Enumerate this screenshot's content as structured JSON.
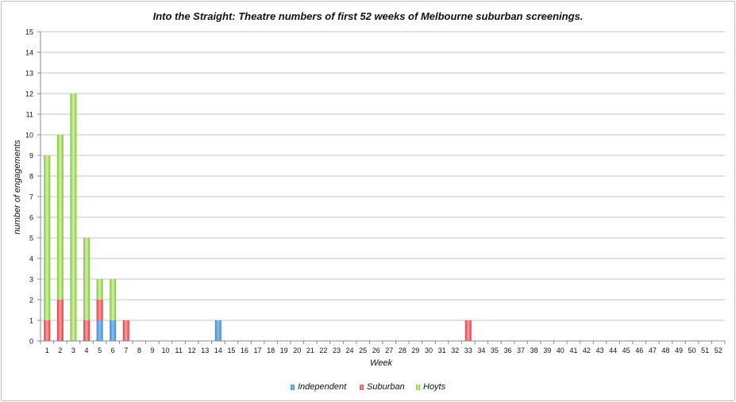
{
  "chart_data": {
    "type": "bar",
    "stacked": true,
    "title": "Into the Straight: Theatre numbers of first 52 weeks of Melbourne suburban screenings.",
    "xlabel": "Week",
    "ylabel": "number of engagements",
    "ylim": [
      0,
      15
    ],
    "yticks": [
      0,
      1,
      2,
      3,
      4,
      5,
      6,
      7,
      8,
      9,
      10,
      11,
      12,
      13,
      14,
      15
    ],
    "grid": true,
    "legend_position": "bottom",
    "categories": [
      "1",
      "2",
      "3",
      "4",
      "5",
      "6",
      "7",
      "8",
      "9",
      "10",
      "11",
      "12",
      "13",
      "14",
      "15",
      "16",
      "17",
      "18",
      "19",
      "20",
      "21",
      "22",
      "23",
      "24",
      "25",
      "26",
      "27",
      "28",
      "29",
      "30",
      "31",
      "32",
      "33",
      "34",
      "35",
      "36",
      "37",
      "38",
      "39",
      "40",
      "41",
      "42",
      "43",
      "44",
      "45",
      "46",
      "47",
      "48",
      "49",
      "50",
      "51",
      "52"
    ],
    "series": [
      {
        "name": "Independent",
        "color": "#5b9bd5",
        "values": [
          0,
          0,
          0,
          0,
          1,
          1,
          0,
          0,
          0,
          0,
          0,
          0,
          0,
          1,
          0,
          0,
          0,
          0,
          0,
          0,
          0,
          0,
          0,
          0,
          0,
          0,
          0,
          0,
          0,
          0,
          0,
          0,
          0,
          0,
          0,
          0,
          0,
          0,
          0,
          0,
          0,
          0,
          0,
          0,
          0,
          0,
          0,
          0,
          0,
          0,
          0,
          0
        ]
      },
      {
        "name": "Suburban",
        "color": "#e8484b",
        "values": [
          1,
          2,
          0,
          1,
          1,
          0,
          1,
          0,
          0,
          0,
          0,
          0,
          0,
          0,
          0,
          0,
          0,
          0,
          0,
          0,
          0,
          0,
          0,
          0,
          0,
          0,
          0,
          0,
          0,
          0,
          0,
          0,
          1,
          0,
          0,
          0,
          0,
          0,
          0,
          0,
          0,
          0,
          0,
          0,
          0,
          0,
          0,
          0,
          0,
          0,
          0,
          0
        ]
      },
      {
        "name": "Hoyts",
        "color": "#8dcf3f",
        "values": [
          8,
          8,
          12,
          4,
          1,
          2,
          0,
          0,
          0,
          0,
          0,
          0,
          0,
          0,
          0,
          0,
          0,
          0,
          0,
          0,
          0,
          0,
          0,
          0,
          0,
          0,
          0,
          0,
          0,
          0,
          0,
          0,
          0,
          0,
          0,
          0,
          0,
          0,
          0,
          0,
          0,
          0,
          0,
          0,
          0,
          0,
          0,
          0,
          0,
          0,
          0,
          0
        ]
      }
    ]
  }
}
